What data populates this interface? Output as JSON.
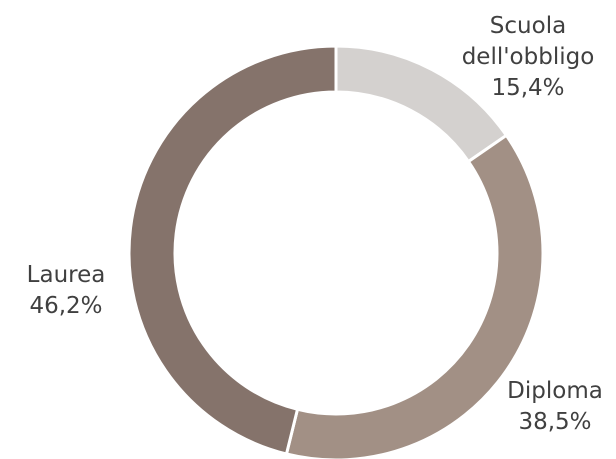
{
  "chart_data": {
    "type": "pie",
    "variant": "donut",
    "title": "",
    "categories": [
      "Scuola dell'obbligo",
      "Diploma",
      "Laurea"
    ],
    "values": [
      15.4,
      38.5,
      46.2
    ],
    "value_labels": [
      "15,4%",
      "38,5%",
      "46,2%"
    ],
    "label_lines": [
      [
        "Scuola",
        "dell'obbligo",
        "15,4%"
      ],
      [
        "Diploma",
        "38,5%"
      ],
      [
        "Laurea",
        "46,2%"
      ]
    ],
    "colors": [
      "#d4d1cf",
      "#a29085",
      "#85736b"
    ],
    "legend": "none"
  }
}
